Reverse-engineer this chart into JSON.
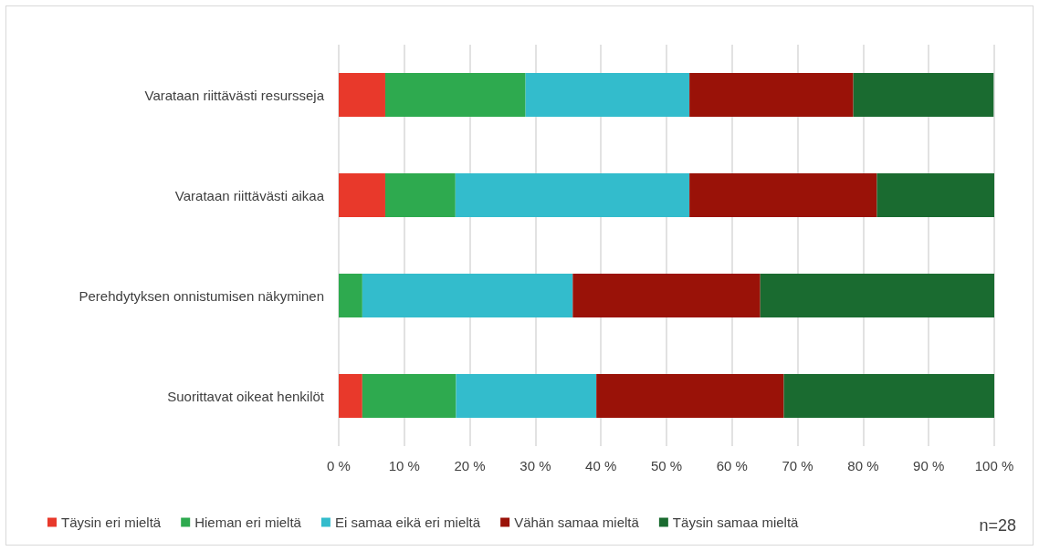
{
  "chart_data": {
    "type": "bar",
    "orientation": "horizontal",
    "stacked": true,
    "categories": [
      "Varataan riittävästi resursseja",
      "Varataan riittävästi aikaa",
      "Perehdytyksen onnistumisen näkyminen",
      "Suorittavat oikeat henkilöt"
    ],
    "series": [
      {
        "name": "Täysin eri mieltä",
        "color": "#e8392b",
        "values": [
          7.1,
          7.1,
          0,
          3.6
        ]
      },
      {
        "name": "Hieman eri mieltä",
        "color": "#2eaa4f",
        "values": [
          21.4,
          10.7,
          3.6,
          14.3
        ]
      },
      {
        "name": "Ei samaa eikä eri mieltä",
        "color": "#33bccc",
        "values": [
          25.0,
          35.7,
          32.1,
          21.4
        ]
      },
      {
        "name": "Vähän samaa mieltä",
        "color": "#9a1208",
        "values": [
          25.0,
          28.6,
          28.6,
          28.6
        ]
      },
      {
        "name": "Täysin samaa mieltä",
        "color": "#1a6b30",
        "values": [
          21.4,
          17.9,
          35.7,
          32.1
        ]
      }
    ],
    "xlim": [
      0,
      100
    ],
    "xticks": [
      {
        "value": 0,
        "label": "0 %"
      },
      {
        "value": 10,
        "label": "10 %"
      },
      {
        "value": 20,
        "label": "20 %"
      },
      {
        "value": 30,
        "label": "30 %"
      },
      {
        "value": 40,
        "label": "40 %"
      },
      {
        "value": 50,
        "label": "50 %"
      },
      {
        "value": 60,
        "label": "60 %"
      },
      {
        "value": 70,
        "label": "70 %"
      },
      {
        "value": 80,
        "label": "80 %"
      },
      {
        "value": 90,
        "label": "90 %"
      },
      {
        "value": 100,
        "label": "100 %"
      }
    ],
    "grid": "x",
    "legend": "bottom",
    "annotations": [
      "n=28"
    ]
  }
}
